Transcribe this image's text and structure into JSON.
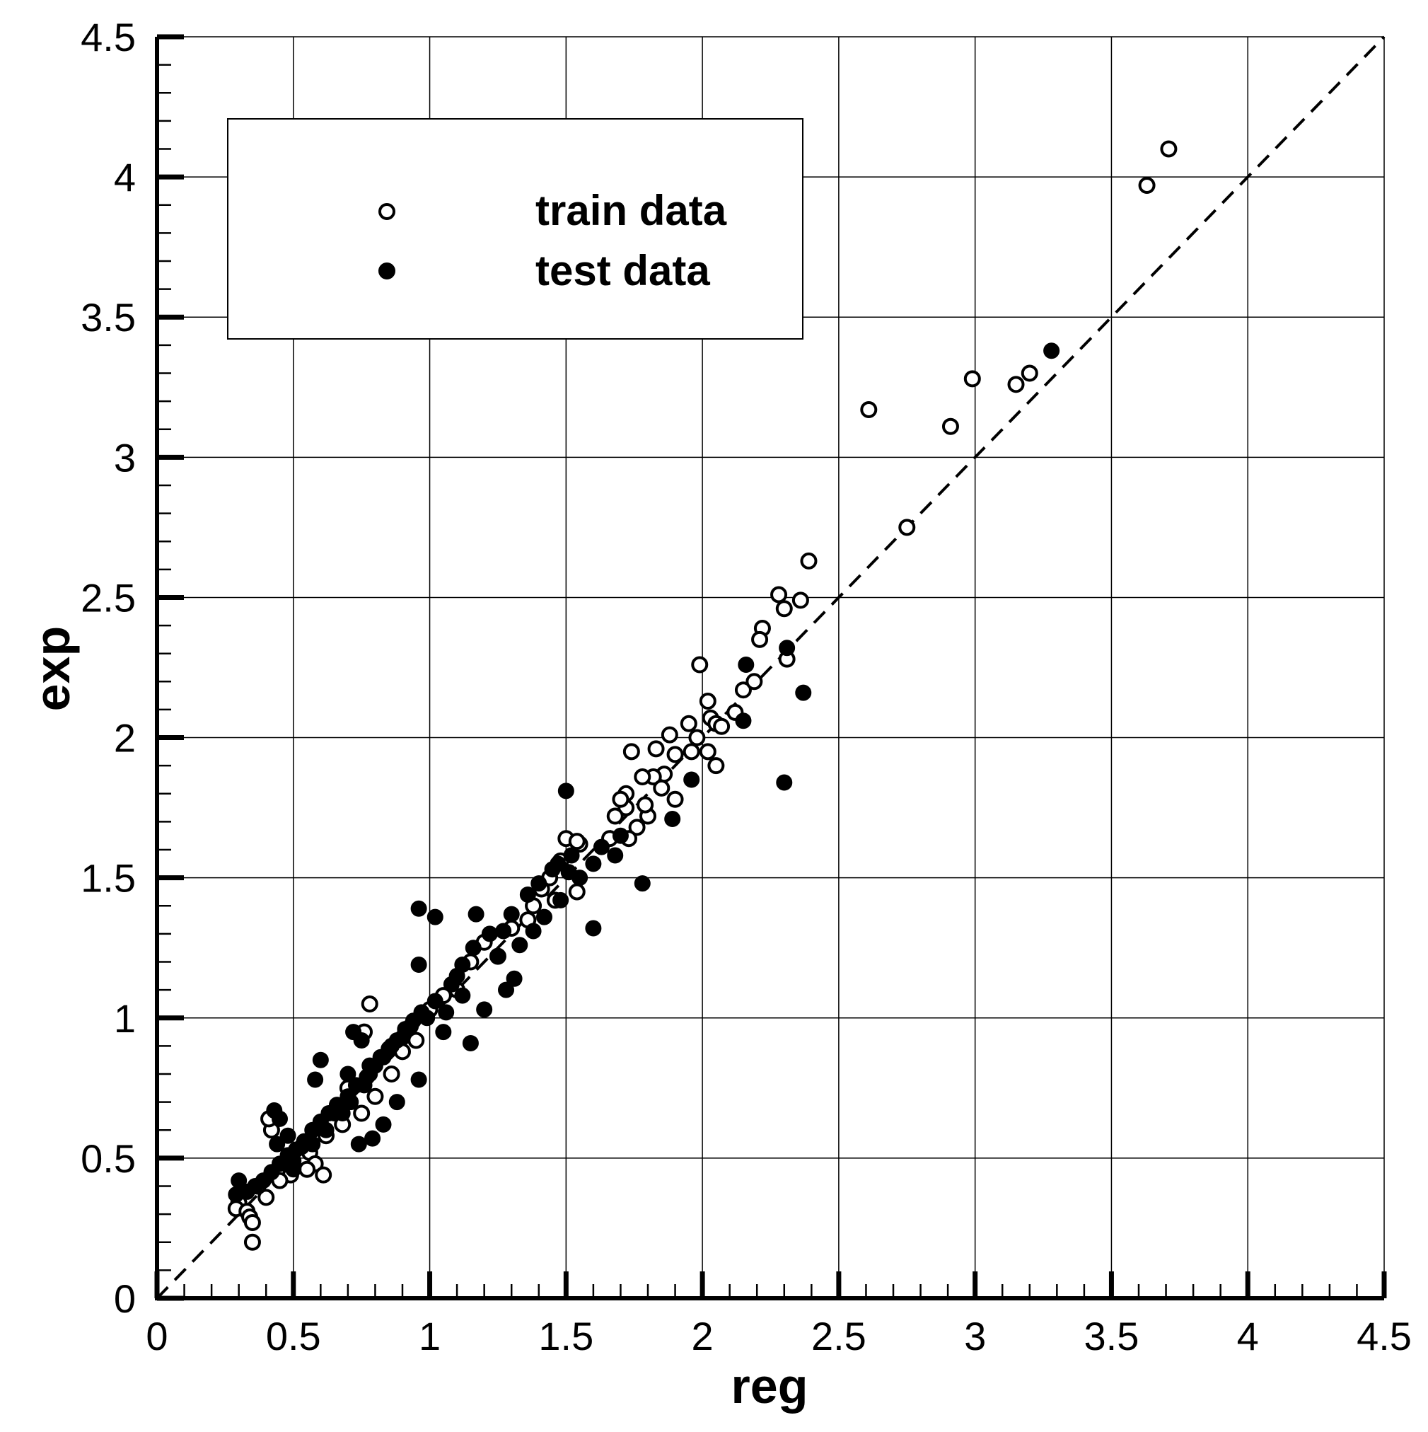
{
  "chart_data": {
    "type": "scatter",
    "title": "",
    "xlabel": "reg",
    "ylabel": "exp",
    "xlim": [
      0,
      4.5
    ],
    "ylim": [
      0,
      4.5
    ],
    "x_ticks": [
      "0",
      "0.5",
      "1",
      "1.5",
      "2",
      "2.5",
      "3",
      "3.5",
      "4",
      "4.5"
    ],
    "y_ticks": [
      "0",
      "0.5",
      "1",
      "1.5",
      "2",
      "2.5",
      "3",
      "3.5",
      "4",
      "4.5"
    ],
    "grid": true,
    "legend_position": "top-left",
    "reference_line": {
      "style": "dashed",
      "from": [
        0,
        0
      ],
      "to": [
        4.5,
        4.5
      ]
    },
    "series": [
      {
        "name": "train data",
        "marker": "open-circle",
        "color": "#000000",
        "points": [
          [
            3.71,
            4.1
          ],
          [
            3.63,
            3.97
          ],
          [
            3.2,
            3.3
          ],
          [
            3.15,
            3.26
          ],
          [
            2.99,
            3.28
          ],
          [
            2.91,
            3.11
          ],
          [
            2.61,
            3.17
          ],
          [
            2.75,
            2.75
          ],
          [
            2.39,
            2.63
          ],
          [
            2.28,
            2.51
          ],
          [
            2.3,
            2.46
          ],
          [
            2.36,
            2.49
          ],
          [
            2.22,
            2.39
          ],
          [
            2.21,
            2.35
          ],
          [
            2.31,
            2.28
          ],
          [
            1.99,
            2.26
          ],
          [
            2.15,
            2.17
          ],
          [
            2.02,
            2.13
          ],
          [
            2.03,
            2.07
          ],
          [
            2.05,
            2.05
          ],
          [
            2.07,
            2.04
          ],
          [
            2.12,
            2.09
          ],
          [
            2.19,
            2.2
          ],
          [
            1.95,
            2.05
          ],
          [
            1.88,
            2.01
          ],
          [
            1.98,
            2.0
          ],
          [
            1.74,
            1.95
          ],
          [
            1.83,
            1.96
          ],
          [
            1.86,
            1.87
          ],
          [
            1.82,
            1.86
          ],
          [
            1.9,
            1.94
          ],
          [
            1.96,
            1.95
          ],
          [
            2.02,
            1.95
          ],
          [
            2.05,
            1.9
          ],
          [
            1.72,
            1.8
          ],
          [
            1.78,
            1.86
          ],
          [
            1.8,
            1.72
          ],
          [
            1.79,
            1.76
          ],
          [
            1.9,
            1.78
          ],
          [
            1.85,
            1.82
          ],
          [
            1.72,
            1.75
          ],
          [
            1.7,
            1.78
          ],
          [
            1.76,
            1.68
          ],
          [
            1.66,
            1.64
          ],
          [
            1.73,
            1.64
          ],
          [
            1.68,
            1.72
          ],
          [
            1.55,
            1.62
          ],
          [
            1.5,
            1.64
          ],
          [
            1.54,
            1.63
          ],
          [
            1.48,
            1.56
          ],
          [
            1.44,
            1.5
          ],
          [
            1.46,
            1.42
          ],
          [
            1.54,
            1.45
          ],
          [
            1.38,
            1.4
          ],
          [
            1.41,
            1.46
          ],
          [
            1.36,
            1.35
          ],
          [
            1.3,
            1.32
          ],
          [
            1.2,
            1.27
          ],
          [
            1.25,
            1.22
          ],
          [
            1.15,
            1.2
          ],
          [
            1.1,
            1.1
          ],
          [
            1.05,
            1.08
          ],
          [
            1.0,
            1.03
          ],
          [
            0.78,
            1.05
          ],
          [
            0.76,
            0.95
          ],
          [
            0.95,
            0.92
          ],
          [
            0.9,
            0.88
          ],
          [
            0.86,
            0.8
          ],
          [
            0.7,
            0.75
          ],
          [
            0.8,
            0.72
          ],
          [
            0.75,
            0.66
          ],
          [
            0.68,
            0.62
          ],
          [
            0.62,
            0.58
          ],
          [
            0.56,
            0.52
          ],
          [
            0.58,
            0.48
          ],
          [
            0.61,
            0.44
          ],
          [
            0.55,
            0.46
          ],
          [
            0.49,
            0.44
          ],
          [
            0.45,
            0.42
          ],
          [
            0.4,
            0.36
          ],
          [
            0.37,
            0.4
          ],
          [
            0.3,
            0.34
          ],
          [
            0.29,
            0.32
          ],
          [
            0.33,
            0.31
          ],
          [
            0.34,
            0.29
          ],
          [
            0.35,
            0.27
          ],
          [
            0.35,
            0.2
          ],
          [
            0.42,
            0.6
          ],
          [
            0.41,
            0.64
          ]
        ]
      },
      {
        "name": "test data",
        "marker": "filled-circle",
        "color": "#000000",
        "points": [
          [
            3.28,
            3.38
          ],
          [
            2.31,
            2.32
          ],
          [
            2.16,
            2.26
          ],
          [
            2.37,
            2.16
          ],
          [
            2.3,
            1.84
          ],
          [
            2.15,
            2.06
          ],
          [
            1.96,
            1.85
          ],
          [
            1.89,
            1.71
          ],
          [
            1.78,
            1.48
          ],
          [
            1.6,
            1.32
          ],
          [
            1.5,
            1.81
          ],
          [
            1.51,
            1.52
          ],
          [
            1.45,
            1.53
          ],
          [
            1.4,
            1.48
          ],
          [
            1.36,
            1.44
          ],
          [
            1.3,
            1.37
          ],
          [
            1.27,
            1.31
          ],
          [
            1.17,
            1.37
          ],
          [
            1.22,
            1.3
          ],
          [
            1.16,
            1.25
          ],
          [
            1.12,
            1.19
          ],
          [
            1.1,
            1.15
          ],
          [
            1.08,
            1.12
          ],
          [
            1.02,
            1.06
          ],
          [
            0.97,
            1.02
          ],
          [
            0.96,
            1.39
          ],
          [
            1.02,
            1.36
          ],
          [
            0.96,
            1.19
          ],
          [
            0.93,
            0.97
          ],
          [
            0.9,
            0.93
          ],
          [
            0.86,
            0.9
          ],
          [
            0.83,
            0.86
          ],
          [
            0.8,
            0.83
          ],
          [
            0.77,
            0.79
          ],
          [
            0.73,
            0.76
          ],
          [
            0.7,
            0.72
          ],
          [
            0.66,
            0.69
          ],
          [
            0.63,
            0.66
          ],
          [
            0.6,
            0.63
          ],
          [
            0.57,
            0.6
          ],
          [
            0.54,
            0.56
          ],
          [
            0.51,
            0.53
          ],
          [
            0.48,
            0.51
          ],
          [
            0.45,
            0.48
          ],
          [
            0.42,
            0.45
          ],
          [
            0.39,
            0.42
          ],
          [
            0.36,
            0.4
          ],
          [
            0.33,
            0.38
          ],
          [
            0.3,
            0.42
          ],
          [
            0.29,
            0.37
          ],
          [
            0.43,
            0.67
          ],
          [
            0.45,
            0.64
          ],
          [
            0.48,
            0.58
          ],
          [
            0.44,
            0.55
          ],
          [
            0.5,
            0.46
          ],
          [
            0.6,
            0.85
          ],
          [
            0.58,
            0.78
          ],
          [
            0.72,
            0.95
          ],
          [
            0.75,
            0.92
          ],
          [
            0.78,
            0.83
          ],
          [
            0.7,
            0.8
          ],
          [
            0.68,
            0.66
          ],
          [
            0.74,
            0.55
          ],
          [
            0.79,
            0.57
          ],
          [
            0.83,
            0.62
          ],
          [
            0.88,
            0.7
          ],
          [
            0.96,
            0.78
          ],
          [
            1.05,
            0.95
          ],
          [
            1.15,
            0.91
          ],
          [
            1.2,
            1.03
          ],
          [
            1.28,
            1.1
          ],
          [
            1.31,
            1.14
          ],
          [
            1.33,
            1.26
          ],
          [
            1.38,
            1.31
          ],
          [
            1.42,
            1.36
          ],
          [
            1.48,
            1.42
          ],
          [
            1.55,
            1.5
          ],
          [
            1.6,
            1.55
          ],
          [
            1.63,
            1.61
          ],
          [
            1.68,
            1.58
          ],
          [
            1.7,
            1.65
          ],
          [
            1.52,
            1.58
          ],
          [
            1.47,
            1.55
          ],
          [
            1.25,
            1.22
          ],
          [
            1.12,
            1.08
          ],
          [
            1.06,
            1.02
          ],
          [
            0.99,
            1.0
          ],
          [
            0.94,
            0.99
          ],
          [
            0.91,
            0.96
          ],
          [
            0.88,
            0.92
          ],
          [
            0.85,
            0.89
          ],
          [
            0.82,
            0.86
          ],
          [
            0.78,
            0.8
          ],
          [
            0.76,
            0.76
          ],
          [
            0.71,
            0.7
          ],
          [
            0.65,
            0.66
          ],
          [
            0.62,
            0.6
          ],
          [
            0.57,
            0.55
          ],
          [
            0.53,
            0.54
          ],
          [
            0.5,
            0.49
          ]
        ]
      }
    ]
  }
}
